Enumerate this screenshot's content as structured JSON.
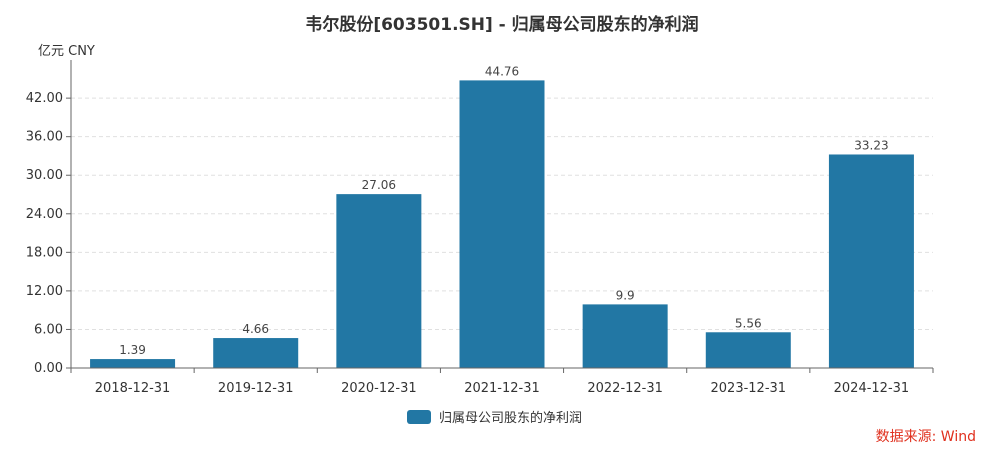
{
  "chart_data": {
    "type": "bar",
    "title": "韦尔股份[603501.SH] - 归属母公司股东的净利润",
    "ylabel": "亿元  CNY",
    "categories": [
      "2018-12-31",
      "2019-12-31",
      "2020-12-31",
      "2021-12-31",
      "2022-12-31",
      "2023-12-31",
      "2024-12-31"
    ],
    "series": [
      {
        "name": "归属母公司股东的净利润",
        "values": [
          1.39,
          4.66,
          27.06,
          44.76,
          9.9,
          5.56,
          33.23
        ]
      }
    ],
    "data_labels": [
      "1.39",
      "4.66",
      "27.06",
      "44.76",
      "9.9",
      "5.56",
      "33.23"
    ],
    "ylim": [
      0,
      47
    ],
    "yticks": [
      0,
      6,
      12,
      18,
      24,
      30,
      36,
      42
    ],
    "ytick_labels": [
      "0.00",
      "6.00",
      "12.00",
      "18.00",
      "24.00",
      "30.00",
      "36.00",
      "42.00"
    ],
    "grid": true,
    "legend_position": "bottom-center",
    "bar_color": "#2277a4"
  },
  "source": "数据来源: Wind"
}
